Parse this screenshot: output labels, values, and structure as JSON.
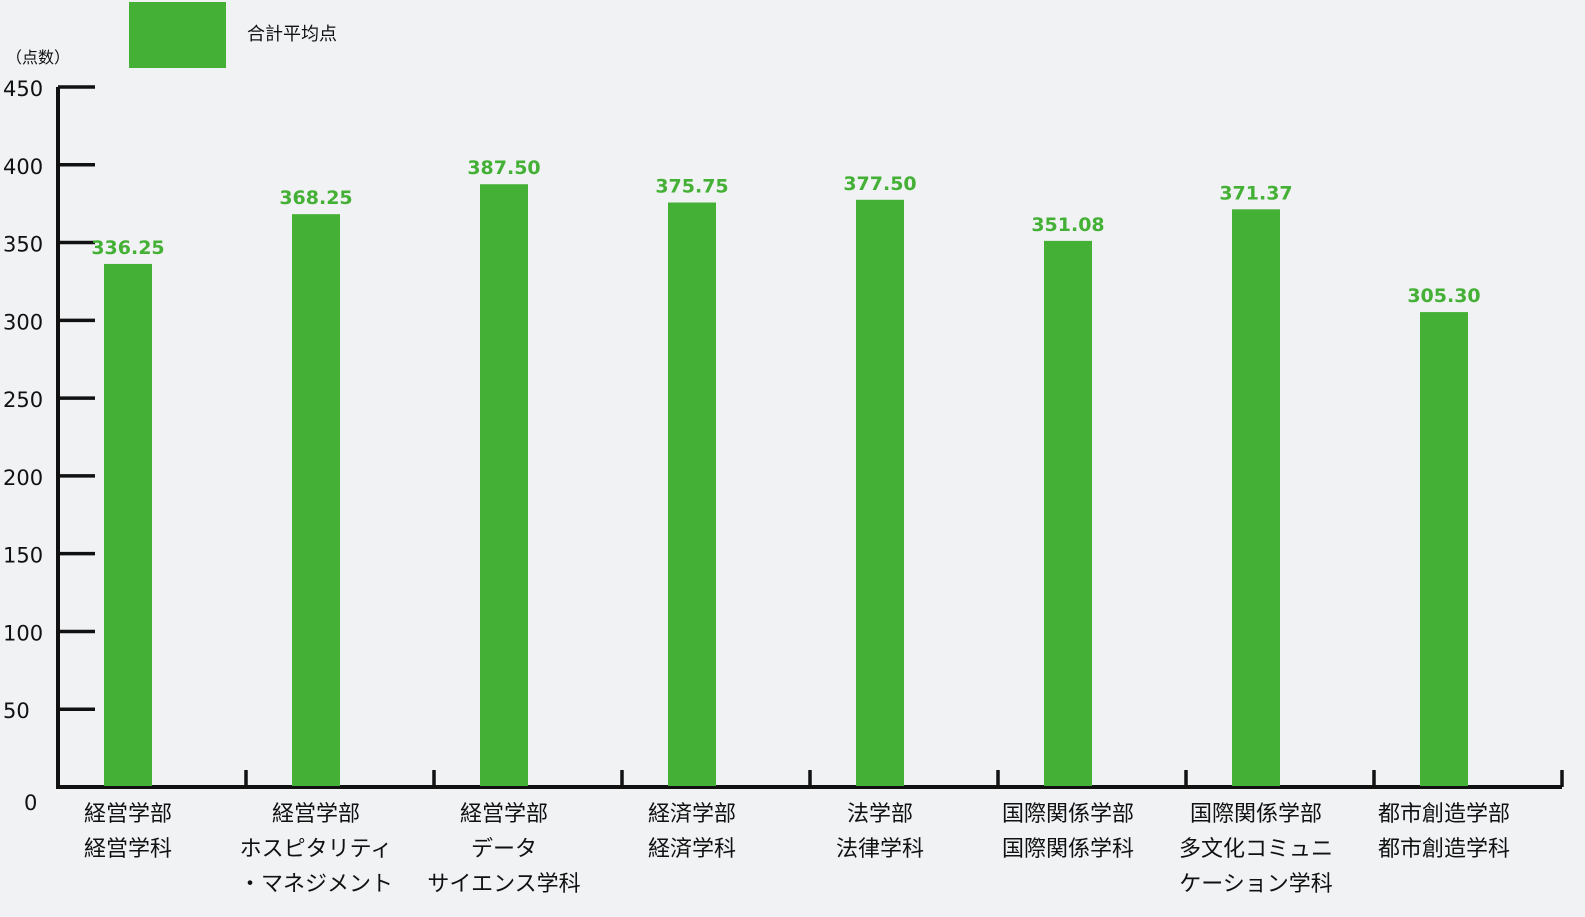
{
  "chart_data": {
    "type": "bar",
    "unit_label": "（点数）",
    "legend": [
      {
        "label": "合計平均点",
        "color": "#44b035"
      }
    ],
    "categories": [
      [
        "経営学部",
        "経営学科"
      ],
      [
        "経営学部",
        "ホスピタリティ",
        "・マネジメント"
      ],
      [
        "経営学部",
        "データ",
        "サイエンス学科"
      ],
      [
        "経済学部",
        "経済学科"
      ],
      [
        "法学部",
        "法律学科"
      ],
      [
        "国際関係学部",
        "国際関係学科"
      ],
      [
        "国際関係学部",
        "多文化コミュニ",
        "ケーション学科"
      ],
      [
        "都市創造学部",
        "都市創造学科"
      ]
    ],
    "series": [
      {
        "name": "合計平均点",
        "values": [
          336.25,
          368.25,
          387.5,
          375.75,
          377.5,
          351.08,
          371.37,
          305.3
        ],
        "value_labels": [
          "336.25",
          "368.25",
          "387.50",
          "375.75",
          "377.50",
          "351.08",
          "371.37",
          "305.30"
        ],
        "color": "#44b035"
      }
    ],
    "ylim": [
      0,
      450
    ],
    "yticks": [
      0,
      50,
      100,
      150,
      200,
      250,
      300,
      350,
      400,
      450
    ],
    "value_label_color": "#44b035",
    "axis_color": "#111111",
    "grid": false,
    "legend_position": "top-left"
  }
}
